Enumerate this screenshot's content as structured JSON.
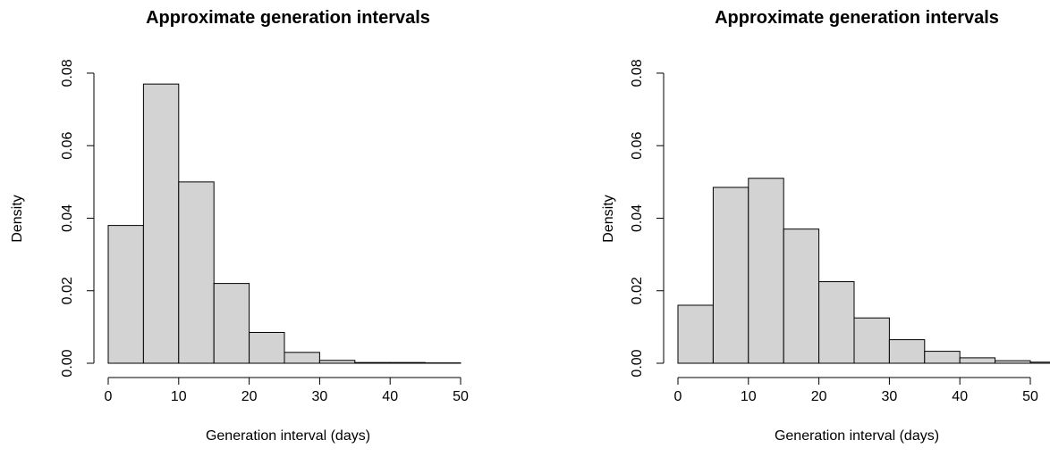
{
  "chart_data": [
    {
      "type": "bar",
      "title": "Approximate generation intervals",
      "xlabel": "Generation interval (days)",
      "ylabel": "Density",
      "xlim": [
        0,
        50
      ],
      "ylim": [
        0,
        0.08
      ],
      "xticks": [
        "0",
        "10",
        "20",
        "30",
        "40",
        "50"
      ],
      "yticks": [
        "0.00",
        "0.02",
        "0.04",
        "0.06",
        "0.08"
      ],
      "bins": [
        [
          0,
          5
        ],
        [
          5,
          10
        ],
        [
          10,
          15
        ],
        [
          15,
          20
        ],
        [
          20,
          25
        ],
        [
          25,
          30
        ],
        [
          30,
          35
        ],
        [
          35,
          40
        ],
        [
          40,
          45
        ],
        [
          45,
          50
        ]
      ],
      "values": [
        0.038,
        0.077,
        0.05,
        0.022,
        0.0085,
        0.003,
        0.0008,
        0.0002,
        0.0002,
        0.0001
      ],
      "grid": false,
      "fill_color": "#d3d3d3"
    },
    {
      "type": "bar",
      "title": "Approximate generation intervals",
      "xlabel": "Generation interval (days)",
      "ylabel": "Density",
      "xlim": [
        0,
        50
      ],
      "ylim": [
        0,
        0.08
      ],
      "xticks": [
        "0",
        "10",
        "20",
        "30",
        "40",
        "50"
      ],
      "yticks": [
        "0.00",
        "0.02",
        "0.04",
        "0.06",
        "0.08"
      ],
      "bins": [
        [
          0,
          5
        ],
        [
          5,
          10
        ],
        [
          10,
          15
        ],
        [
          15,
          20
        ],
        [
          20,
          25
        ],
        [
          25,
          30
        ],
        [
          30,
          35
        ],
        [
          35,
          40
        ],
        [
          40,
          45
        ],
        [
          45,
          50
        ],
        [
          50,
          55
        ]
      ],
      "values": [
        0.016,
        0.0485,
        0.051,
        0.037,
        0.0225,
        0.0125,
        0.0065,
        0.0033,
        0.0015,
        0.0007,
        0.0003
      ],
      "grid": false,
      "fill_color": "#d3d3d3"
    }
  ]
}
